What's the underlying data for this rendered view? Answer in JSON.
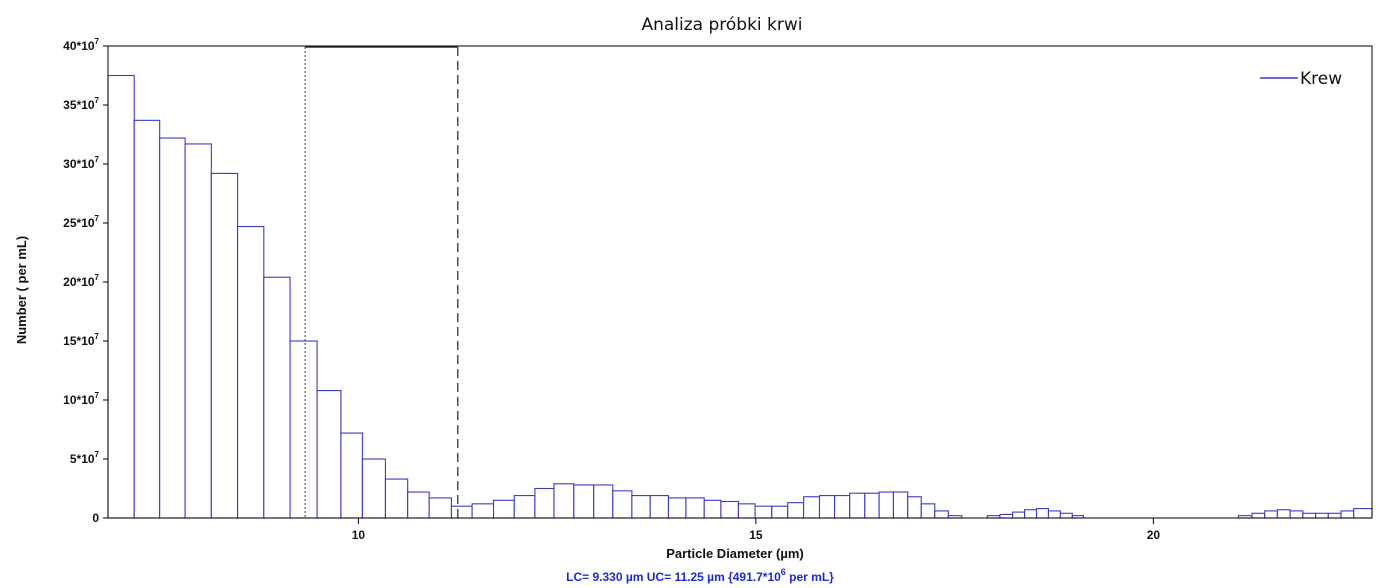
{
  "chart_data": {
    "type": "bar",
    "title": "Analiza próbki krwi",
    "xlabel": "Particle Diameter (µm)",
    "ylabel": "Number ( per mL)",
    "xlim": [
      6.85,
      22.75
    ],
    "ylim": [
      0,
      40
    ],
    "x_ticks": [
      {
        "value": 10,
        "label": "10"
      },
      {
        "value": 15,
        "label": "15"
      },
      {
        "value": 20,
        "label": "20"
      }
    ],
    "y_ticks": [
      {
        "value": 0,
        "base": "0",
        "exp": ""
      },
      {
        "value": 5,
        "base": "5*10",
        "exp": "7"
      },
      {
        "value": 10,
        "base": "10*10",
        "exp": "7"
      },
      {
        "value": 15,
        "base": "15*10",
        "exp": "7"
      },
      {
        "value": 20,
        "base": "20*10",
        "exp": "7"
      },
      {
        "value": 25,
        "base": "25*10",
        "exp": "7"
      },
      {
        "value": 30,
        "base": "30*10",
        "exp": "7"
      },
      {
        "value": 35,
        "base": "35*10",
        "exp": "7"
      },
      {
        "value": 40,
        "base": "40*10",
        "exp": "7"
      }
    ],
    "y_unit_note": "values in units of 10^7 per mL",
    "series": [
      {
        "name": "Krew",
        "color": "#3a3acc",
        "bins": [
          [
            6.85,
            7.18,
            37.5
          ],
          [
            7.18,
            7.5,
            33.7
          ],
          [
            7.5,
            7.82,
            32.2
          ],
          [
            7.82,
            8.15,
            31.7
          ],
          [
            8.15,
            8.48,
            29.2
          ],
          [
            8.48,
            8.81,
            24.7
          ],
          [
            8.81,
            9.14,
            20.4
          ],
          [
            9.14,
            9.48,
            15.0
          ],
          [
            9.48,
            9.78,
            10.8
          ],
          [
            9.78,
            10.05,
            7.2
          ],
          [
            10.05,
            10.34,
            5.0
          ],
          [
            10.34,
            10.62,
            3.3
          ],
          [
            10.62,
            10.89,
            2.2
          ],
          [
            10.89,
            11.17,
            1.7
          ],
          [
            11.17,
            11.43,
            1.0
          ],
          [
            11.43,
            11.7,
            1.2
          ],
          [
            11.7,
            11.96,
            1.5
          ],
          [
            11.96,
            12.22,
            1.9
          ],
          [
            12.22,
            12.46,
            2.5
          ],
          [
            12.46,
            12.71,
            2.9
          ],
          [
            12.71,
            12.96,
            2.8
          ],
          [
            12.96,
            13.2,
            2.8
          ],
          [
            13.2,
            13.44,
            2.3
          ],
          [
            13.44,
            13.67,
            1.9
          ],
          [
            13.67,
            13.9,
            1.9
          ],
          [
            13.9,
            14.12,
            1.7
          ],
          [
            14.12,
            14.35,
            1.7
          ],
          [
            14.35,
            14.56,
            1.5
          ],
          [
            14.56,
            14.78,
            1.4
          ],
          [
            14.78,
            14.99,
            1.2
          ],
          [
            14.99,
            15.2,
            1.0
          ],
          [
            15.2,
            15.4,
            1.0
          ],
          [
            15.4,
            15.6,
            1.3
          ],
          [
            15.6,
            15.8,
            1.8
          ],
          [
            15.8,
            15.99,
            1.9
          ],
          [
            15.99,
            16.18,
            1.9
          ],
          [
            16.18,
            16.37,
            2.1
          ],
          [
            16.37,
            16.55,
            2.1
          ],
          [
            16.55,
            16.73,
            2.2
          ],
          [
            16.73,
            16.91,
            2.2
          ],
          [
            16.91,
            17.08,
            1.8
          ],
          [
            17.08,
            17.25,
            1.2
          ],
          [
            17.25,
            17.42,
            0.6
          ],
          [
            17.42,
            17.59,
            0.2
          ],
          [
            17.59,
            17.75,
            0.0
          ],
          [
            17.75,
            17.91,
            0.0
          ],
          [
            17.91,
            18.07,
            0.2
          ],
          [
            18.07,
            18.23,
            0.3
          ],
          [
            18.23,
            18.38,
            0.5
          ],
          [
            18.38,
            18.53,
            0.7
          ],
          [
            18.53,
            18.68,
            0.8
          ],
          [
            18.68,
            18.83,
            0.6
          ],
          [
            18.83,
            18.98,
            0.4
          ],
          [
            18.98,
            19.12,
            0.2
          ],
          [
            21.07,
            21.24,
            0.2
          ],
          [
            21.24,
            21.4,
            0.4
          ],
          [
            21.4,
            21.56,
            0.6
          ],
          [
            21.56,
            21.72,
            0.7
          ],
          [
            21.72,
            21.88,
            0.6
          ],
          [
            21.88,
            22.04,
            0.4
          ],
          [
            22.04,
            22.2,
            0.4
          ],
          [
            22.2,
            22.36,
            0.4
          ],
          [
            22.36,
            22.52,
            0.6
          ],
          [
            22.52,
            22.75,
            0.8
          ]
        ]
      }
    ],
    "markers": [
      {
        "name": "LC",
        "value": 9.33,
        "style": "dotted"
      },
      {
        "name": "UC",
        "value": 11.25,
        "style": "dashed"
      }
    ],
    "legend": {
      "position": "top-right",
      "label": "Krew"
    },
    "footer": "LC= 9.330 µm   UC= 11.25 µm {491.7*10",
    "footer_exp": "6",
    "footer_tail": "  per mL}",
    "grid": false
  }
}
